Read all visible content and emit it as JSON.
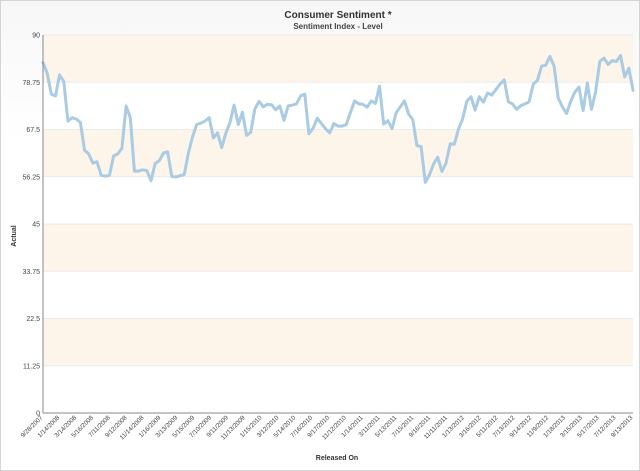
{
  "chart_data": {
    "type": "line",
    "title": "Consumer Sentiment *",
    "subtitle": "Sentiment Index - Level",
    "xlabel": "Released On",
    "ylabel": "Actual",
    "ylim": [
      0,
      90
    ],
    "yticks": [
      0,
      11.25,
      22.5,
      33.75,
      45,
      56.25,
      67.5,
      78.75,
      90
    ],
    "ytick_labels": [
      "0",
      "11.25",
      "22.5",
      "33.75",
      "45",
      "56.25",
      "67.5",
      "78.75",
      "90"
    ],
    "xtick_labels": [
      "9/28/2007",
      "1/14/2008",
      "3/14/2008",
      "5/16/2008",
      "7/11/2008",
      "9/12/2008",
      "11/14/2008",
      "1/16/2009",
      "3/13/2009",
      "5/15/2009",
      "7/10/2009",
      "9/11/2009",
      "11/13/2009",
      "1/15/2010",
      "3/12/2010",
      "5/14/2010",
      "7/16/2010",
      "9/17/2010",
      "11/12/2010",
      "1/14/2011",
      "3/11/2011",
      "5/13/2011",
      "7/15/2011",
      "9/16/2011",
      "11/11/2011",
      "1/13/2012",
      "3/16/2012",
      "5/11/2012",
      "7/13/2012",
      "9/14/2012",
      "11/9/2012",
      "1/18/2013",
      "3/15/2013",
      "5/17/2013",
      "7/12/2013",
      "9/13/2013"
    ],
    "grid": true,
    "line_color": "#a9cbe3",
    "band_color": "#fdf4ea",
    "series": [
      {
        "values": [
          83.4,
          80.9,
          75.9,
          75.5,
          80.5,
          78.9,
          69.5,
          70.3,
          70.0,
          69.2,
          62.6,
          61.7,
          59.5,
          59.8,
          56.6,
          56.4,
          56.6,
          61.2,
          61.7,
          63.0,
          73.1,
          70.3,
          57.6,
          57.6,
          57.9,
          57.7,
          55.3,
          59.4,
          60.1,
          61.9,
          62.2,
          56.3,
          56.2,
          56.5,
          56.8,
          61.9,
          65.8,
          68.7,
          69.0,
          69.5,
          70.3,
          65.5,
          66.7,
          63.2,
          66.6,
          69.2,
          73.3,
          68.7,
          71.6,
          66.1,
          66.8,
          72.4,
          74.2,
          72.9,
          73.5,
          73.4,
          72.2,
          73.1,
          69.7,
          73.1,
          73.3,
          73.6,
          75.5,
          75.9,
          66.5,
          67.8,
          70.2,
          68.9,
          67.7,
          66.7,
          68.9,
          68.3,
          68.3,
          68.7,
          71.6,
          74.3,
          73.6,
          73.5,
          72.8,
          74.3,
          73.7,
          77.8,
          68.8,
          69.6,
          67.7,
          71.5,
          72.9,
          74.3,
          71.2,
          69.8,
          63.7,
          63.4,
          54.9,
          56.7,
          59.3,
          60.9,
          57.5,
          59.5,
          64.1,
          64.0,
          67.6,
          70.0,
          74.2,
          75.3,
          72.1,
          75.3,
          74.0,
          76.2,
          75.7,
          77.0,
          78.3,
          79.3,
          74.1,
          73.6,
          72.3,
          73.2,
          73.6,
          74.1,
          78.3,
          79.2,
          82.6,
          82.8,
          84.9,
          82.6,
          75.0,
          72.9,
          71.3,
          74.2,
          76.4,
          77.6,
          72.0,
          78.6,
          72.3,
          76.4,
          83.7,
          84.5,
          83.0,
          83.9,
          83.7,
          85.1,
          80.0,
          82.1,
          76.8
        ]
      }
    ]
  }
}
